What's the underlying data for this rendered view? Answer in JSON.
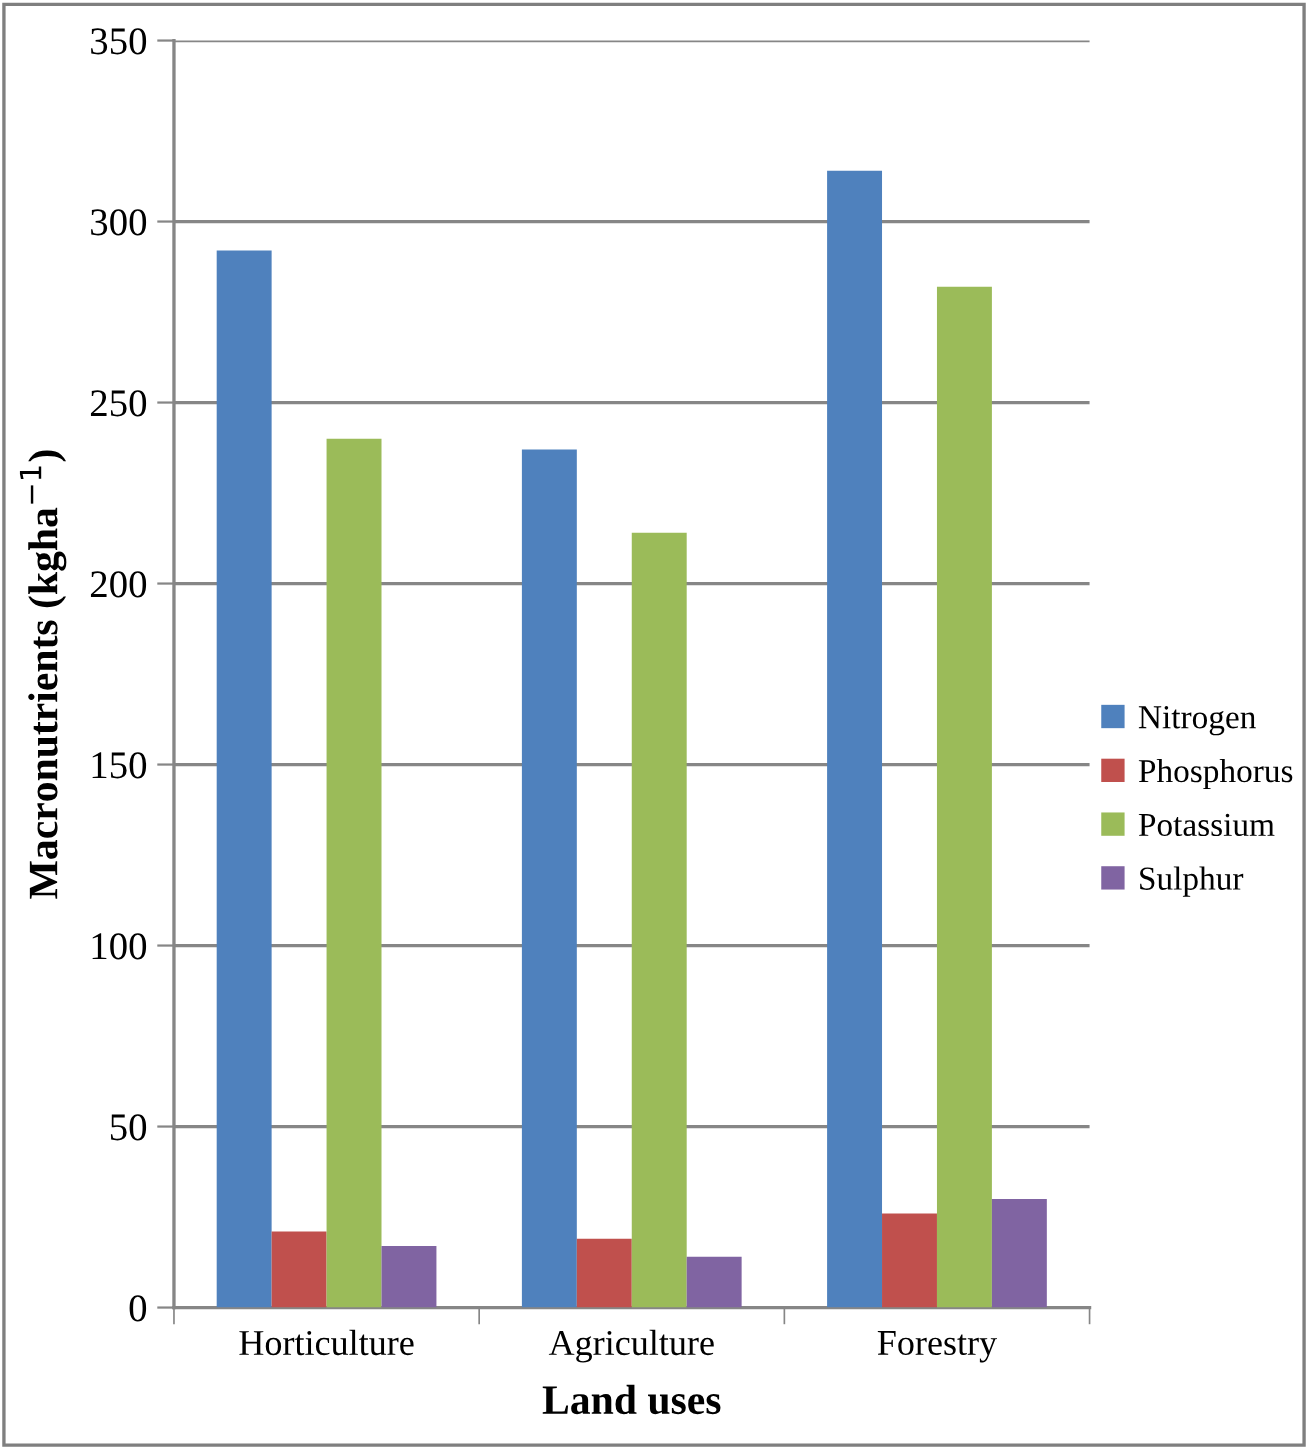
{
  "chart_data": {
    "type": "bar",
    "xlabel": "Land uses",
    "ylabel": "Macronutrients (kgha$^{−1}$)",
    "categories": [
      "Horticulture",
      "Agriculture",
      "Forestry"
    ],
    "series": [
      {
        "name": "Nitrogen",
        "color": "#4f81bd",
        "values": [
          292,
          237,
          314
        ]
      },
      {
        "name": "Phosphorus",
        "color": "#c0504d",
        "values": [
          21,
          19,
          26
        ]
      },
      {
        "name": "Potassium",
        "color": "#9bbb59",
        "values": [
          240,
          214,
          282
        ]
      },
      {
        "name": "Sulphur",
        "color": "#8064a2",
        "values": [
          17,
          14,
          30
        ]
      }
    ],
    "ylim": [
      0,
      350
    ],
    "yticks": [
      0,
      50,
      100,
      150,
      200,
      250,
      300,
      350
    ],
    "grid": "y",
    "legend": "right"
  }
}
